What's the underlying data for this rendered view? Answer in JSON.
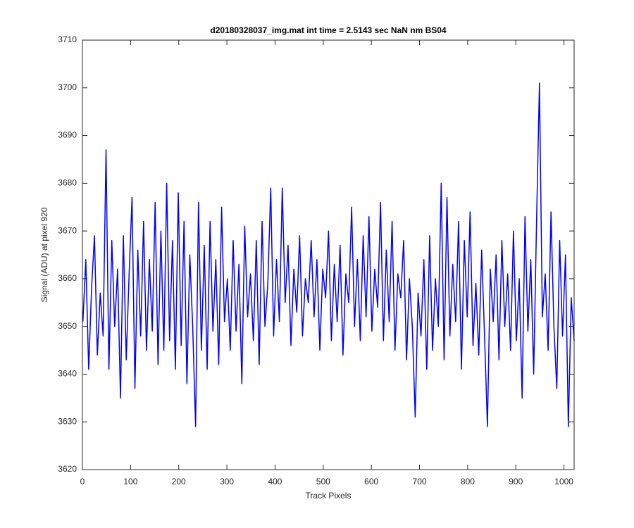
{
  "chart_data": {
    "type": "line",
    "title": "d20180328037_img.mat int time = 2.5143 sec  NaN nm BS04",
    "x_label": "Track Pixels",
    "y_label": "Signal (ADU) at pixel 920",
    "xlim": [
      0,
      1021
    ],
    "ylim": [
      3620,
      3710
    ],
    "xticks": [
      0,
      100,
      200,
      300,
      400,
      500,
      600,
      700,
      800,
      900,
      1000
    ],
    "yticks": [
      3620,
      3630,
      3640,
      3650,
      3660,
      3670,
      3680,
      3690,
      3700,
      3710
    ],
    "x": [
      1,
      7,
      13,
      19,
      25,
      31,
      37,
      43,
      49,
      55,
      61,
      67,
      73,
      79,
      85,
      91,
      97,
      103,
      109,
      115,
      121,
      127,
      133,
      139,
      145,
      151,
      157,
      163,
      169,
      175,
      181,
      187,
      193,
      199,
      205,
      211,
      217,
      223,
      229,
      235,
      241,
      247,
      253,
      259,
      265,
      271,
      277,
      283,
      289,
      295,
      301,
      307,
      313,
      319,
      325,
      331,
      337,
      343,
      349,
      355,
      361,
      367,
      373,
      379,
      385,
      391,
      397,
      403,
      409,
      415,
      421,
      427,
      433,
      439,
      445,
      451,
      457,
      463,
      469,
      475,
      481,
      487,
      493,
      499,
      505,
      511,
      517,
      523,
      529,
      535,
      541,
      547,
      553,
      559,
      565,
      571,
      577,
      583,
      589,
      595,
      601,
      607,
      613,
      619,
      625,
      631,
      637,
      643,
      649,
      655,
      661,
      667,
      673,
      679,
      685,
      691,
      697,
      703,
      709,
      715,
      721,
      727,
      733,
      739,
      745,
      751,
      757,
      763,
      769,
      775,
      781,
      787,
      793,
      799,
      805,
      811,
      817,
      823,
      829,
      835,
      841,
      847,
      853,
      859,
      865,
      871,
      877,
      883,
      889,
      895,
      901,
      907,
      913,
      919,
      925,
      931,
      937,
      943,
      949,
      955,
      961,
      967,
      973,
      979,
      985,
      991,
      997,
      1003,
      1009,
      1015,
      1021
    ],
    "series": [
      {
        "color": "#0000ff",
        "values": [
          3651,
          3664,
          3641,
          3658,
          3669,
          3644,
          3657,
          3648,
          3687,
          3641,
          3668,
          3650,
          3662,
          3635,
          3669,
          3643,
          3661,
          3677,
          3637,
          3666,
          3648,
          3672,
          3645,
          3664,
          3649,
          3676,
          3642,
          3670,
          3645,
          3680,
          3647,
          3668,
          3641,
          3678,
          3646,
          3672,
          3638,
          3665,
          3650,
          3629,
          3676,
          3645,
          3667,
          3641,
          3672,
          3649,
          3664,
          3642,
          3675,
          3651,
          3660,
          3645,
          3668,
          3649,
          3663,
          3638,
          3671,
          3652,
          3661,
          3647,
          3668,
          3642,
          3672,
          3650,
          3659,
          3679,
          3648,
          3664,
          3651,
          3679,
          3655,
          3667,
          3646,
          3662,
          3653,
          3669,
          3648,
          3660,
          3655,
          3668,
          3652,
          3664,
          3645,
          3662,
          3656,
          3670,
          3647,
          3663,
          3651,
          3667,
          3644,
          3661,
          3655,
          3675,
          3650,
          3664,
          3647,
          3669,
          3652,
          3673,
          3649,
          3662,
          3654,
          3676,
          3647,
          3666,
          3651,
          3672,
          3645,
          3661,
          3656,
          3668,
          3643,
          3660,
          3650,
          3631,
          3657,
          3648,
          3664,
          3641,
          3669,
          3645,
          3660,
          3650,
          3680,
          3643,
          3677,
          3648,
          3663,
          3651,
          3672,
          3641,
          3668,
          3652,
          3674,
          3646,
          3659,
          3644,
          3666,
          3648,
          3629,
          3662,
          3651,
          3665,
          3643,
          3668,
          3650,
          3661,
          3645,
          3670,
          3647,
          3660,
          3635,
          3673,
          3649,
          3664,
          3640,
          3672,
          3701,
          3652,
          3661,
          3645,
          3674,
          3650,
          3637,
          3668,
          3648,
          3665,
          3629,
          3656,
          3647
        ]
      }
    ]
  }
}
